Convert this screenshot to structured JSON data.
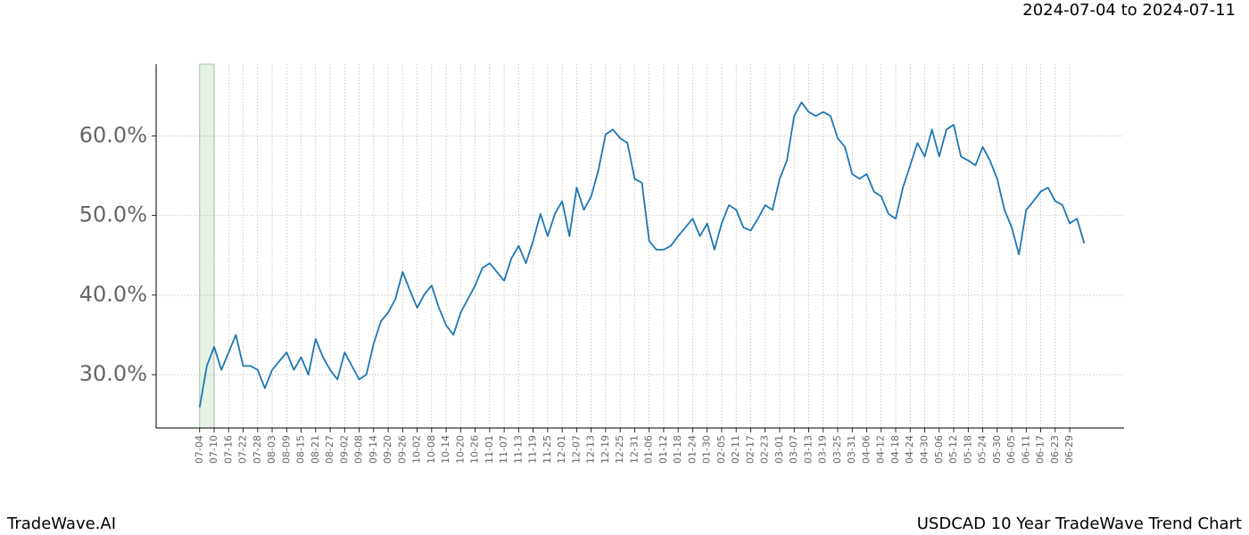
{
  "header": {
    "date_range": "2024-07-04 to 2024-07-11"
  },
  "footer": {
    "brand": "TradeWave.AI",
    "chart_name": "USDCAD 10 Year TradeWave Trend Chart"
  },
  "chart_data": {
    "type": "line",
    "x": [
      0,
      3,
      6,
      9,
      12,
      15,
      18,
      21,
      24,
      27,
      30,
      33,
      36,
      39,
      42,
      45,
      48,
      51,
      54,
      57,
      60,
      63,
      66,
      69,
      72,
      75,
      78,
      81,
      84,
      87,
      90,
      93,
      96,
      99,
      102,
      105,
      108,
      111,
      114,
      117,
      120,
      123,
      126,
      129,
      132,
      135,
      138,
      141,
      144,
      147,
      150,
      153,
      156,
      159,
      162,
      165,
      168,
      171,
      174,
      177,
      180,
      183,
      186,
      189,
      192,
      195,
      198,
      201,
      204,
      207,
      210,
      213,
      216,
      219,
      222,
      225,
      228,
      231,
      234,
      237,
      240,
      243,
      246,
      249,
      252,
      255,
      258,
      261,
      264,
      267,
      270,
      273,
      276,
      279,
      282,
      285,
      288,
      291,
      294,
      297,
      300,
      303,
      306,
      309,
      312,
      315,
      318,
      321,
      324,
      327,
      330,
      333,
      336,
      339,
      342,
      345,
      348,
      351,
      354,
      357,
      360,
      363,
      366
    ],
    "series": [
      {
        "color": "#1f77b4",
        "values": [
          25.9,
          31.1,
          33.5,
          30.6,
          32.8,
          35.0,
          31.1,
          31.1,
          30.6,
          28.3,
          30.6,
          31.7,
          32.8,
          30.6,
          32.2,
          30.0,
          34.5,
          32.2,
          30.6,
          29.4,
          32.8,
          31.1,
          29.4,
          30.0,
          33.9,
          36.7,
          37.8,
          39.5,
          42.9,
          40.6,
          38.4,
          40.1,
          41.2,
          38.4,
          36.2,
          35.0,
          37.8,
          39.5,
          41.2,
          43.4,
          44.0,
          42.9,
          41.8,
          44.6,
          46.2,
          44.0,
          46.8,
          50.2,
          47.4,
          50.2,
          51.8,
          47.4,
          53.5,
          50.7,
          52.4,
          55.7,
          60.2,
          60.8,
          59.7,
          59.1,
          54.6,
          54.1,
          46.8,
          45.7,
          45.7,
          46.2,
          47.4,
          48.5,
          49.6,
          47.4,
          49.0,
          45.7,
          49.0,
          51.3,
          50.7,
          48.5,
          48.1,
          49.6,
          51.3,
          50.7,
          54.6,
          56.9,
          62.5,
          64.2,
          63.0,
          62.5,
          63.0,
          62.5,
          59.7,
          58.6,
          55.2,
          54.6,
          55.2,
          53.0,
          52.4,
          50.2,
          49.6,
          53.5,
          56.3,
          59.1,
          57.4,
          60.8,
          57.4,
          60.8,
          61.4,
          57.4,
          56.9,
          56.3,
          58.6,
          56.9,
          54.6,
          50.7,
          48.5,
          45.1,
          50.7,
          51.8,
          53.0,
          53.5,
          51.8,
          51.3,
          49.0,
          49.6,
          46.5
        ]
      }
    ],
    "highlight_range": [
      0,
      6
    ],
    "highlight_color": "#e6f2e6",
    "xlim": [
      -18,
      382.5
    ],
    "xticks": [
      {
        "value": 0,
        "label": "07-04"
      },
      {
        "value": 6,
        "label": "07-10"
      },
      {
        "value": 12,
        "label": "07-16"
      },
      {
        "value": 18,
        "label": "07-22"
      },
      {
        "value": 24,
        "label": "07-28"
      },
      {
        "value": 30,
        "label": "08-03"
      },
      {
        "value": 36,
        "label": "08-09"
      },
      {
        "value": 42,
        "label": "08-15"
      },
      {
        "value": 48,
        "label": "08-21"
      },
      {
        "value": 54,
        "label": "08-27"
      },
      {
        "value": 60,
        "label": "09-02"
      },
      {
        "value": 66,
        "label": "09-08"
      },
      {
        "value": 72,
        "label": "09-14"
      },
      {
        "value": 78,
        "label": "09-20"
      },
      {
        "value": 84,
        "label": "09-26"
      },
      {
        "value": 90,
        "label": "10-02"
      },
      {
        "value": 96,
        "label": "10-08"
      },
      {
        "value": 102,
        "label": "10-14"
      },
      {
        "value": 108,
        "label": "10-20"
      },
      {
        "value": 114,
        "label": "10-26"
      },
      {
        "value": 120,
        "label": "11-01"
      },
      {
        "value": 126,
        "label": "11-07"
      },
      {
        "value": 132,
        "label": "11-13"
      },
      {
        "value": 138,
        "label": "11-19"
      },
      {
        "value": 144,
        "label": "11-25"
      },
      {
        "value": 150,
        "label": "12-01"
      },
      {
        "value": 156,
        "label": "12-07"
      },
      {
        "value": 162,
        "label": "12-13"
      },
      {
        "value": 168,
        "label": "12-19"
      },
      {
        "value": 174,
        "label": "12-25"
      },
      {
        "value": 180,
        "label": "12-31"
      },
      {
        "value": 186,
        "label": "01-06"
      },
      {
        "value": 192,
        "label": "01-12"
      },
      {
        "value": 198,
        "label": "01-18"
      },
      {
        "value": 204,
        "label": "01-24"
      },
      {
        "value": 210,
        "label": "01-30"
      },
      {
        "value": 216,
        "label": "02-05"
      },
      {
        "value": 222,
        "label": "02-11"
      },
      {
        "value": 228,
        "label": "02-17"
      },
      {
        "value": 234,
        "label": "02-23"
      },
      {
        "value": 240,
        "label": "03-01"
      },
      {
        "value": 246,
        "label": "03-07"
      },
      {
        "value": 252,
        "label": "03-13"
      },
      {
        "value": 258,
        "label": "03-19"
      },
      {
        "value": 264,
        "label": "03-25"
      },
      {
        "value": 270,
        "label": "03-31"
      },
      {
        "value": 276,
        "label": "04-06"
      },
      {
        "value": 282,
        "label": "04-12"
      },
      {
        "value": 288,
        "label": "04-18"
      },
      {
        "value": 294,
        "label": "04-24"
      },
      {
        "value": 300,
        "label": "04-30"
      },
      {
        "value": 306,
        "label": "05-06"
      },
      {
        "value": 312,
        "label": "05-12"
      },
      {
        "value": 318,
        "label": "05-18"
      },
      {
        "value": 324,
        "label": "05-24"
      },
      {
        "value": 330,
        "label": "05-30"
      },
      {
        "value": 336,
        "label": "06-05"
      },
      {
        "value": 342,
        "label": "06-11"
      },
      {
        "value": 348,
        "label": "06-17"
      },
      {
        "value": 354,
        "label": "06-23"
      },
      {
        "value": 360,
        "label": "06-29"
      }
    ],
    "ylim": [
      23.3,
      69.0
    ],
    "yticks": [
      {
        "value": 30,
        "label": "30.0%"
      },
      {
        "value": 40,
        "label": "40.0%"
      },
      {
        "value": 50,
        "label": "50.0%"
      },
      {
        "value": 60,
        "label": "60.0%"
      }
    ],
    "grid": true
  }
}
